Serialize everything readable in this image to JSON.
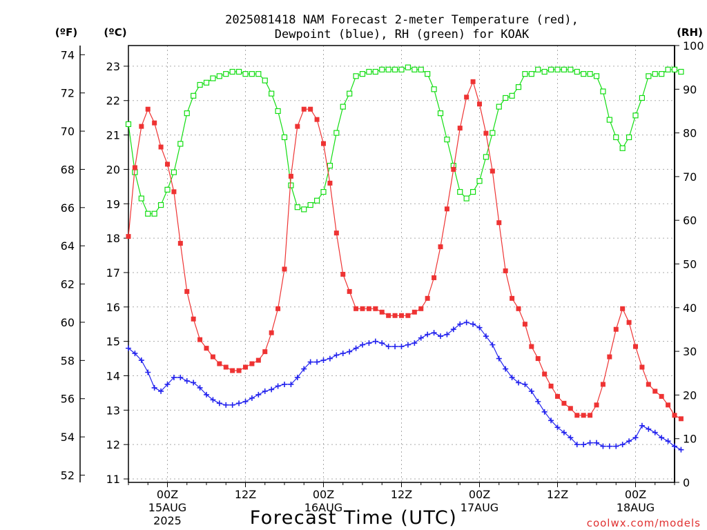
{
  "chart_data": {
    "type": "line",
    "title_line1": "2025081418 NAM Forecast 2-meter Temperature (red),",
    "title_line2": "Dewpoint (blue), RH (green) for KOAK",
    "xlabel": "Forecast Time (UTC)",
    "unit_left_f": "(ºF)",
    "unit_left_c": "(ºC)",
    "unit_right": "(RH)",
    "credit": "coolwx.com/models",
    "colors": {
      "temperature": "#ee3333",
      "dewpoint": "#2222ee",
      "rh": "#11dd11",
      "grid": "#aaaaaa"
    },
    "x_ticks": [
      {
        "hour": 6,
        "label": "00Z",
        "date": "15AUG",
        "year": "2025"
      },
      {
        "hour": 18,
        "label": "12Z",
        "date": "",
        "year": ""
      },
      {
        "hour": 30,
        "label": "00Z",
        "date": "16AUG",
        "year": ""
      },
      {
        "hour": 42,
        "label": "12Z",
        "date": "",
        "year": ""
      },
      {
        "hour": 54,
        "label": "00Z",
        "date": "17AUG",
        "year": ""
      },
      {
        "hour": 66,
        "label": "12Z",
        "date": "",
        "year": ""
      },
      {
        "hour": 78,
        "label": "00Z",
        "date": "18AUG",
        "year": ""
      }
    ],
    "x_range_hours": [
      0,
      84
    ],
    "temp_c_range": [
      10.9,
      23.6
    ],
    "temp_c_ticks": [
      11,
      12,
      13,
      14,
      15,
      16,
      17,
      18,
      19,
      20,
      21,
      22,
      23
    ],
    "temp_f_ticks": [
      52,
      54,
      56,
      58,
      60,
      62,
      64,
      66,
      68,
      70,
      72,
      74
    ],
    "rh_range": [
      0,
      100
    ],
    "rh_ticks": [
      0,
      10,
      20,
      30,
      40,
      50,
      60,
      70,
      80,
      90,
      100
    ],
    "temperature_c": [
      18.05,
      20.05,
      21.25,
      21.75,
      21.35,
      20.65,
      20.15,
      19.35,
      17.85,
      16.45,
      15.65,
      15.05,
      14.8,
      14.55,
      14.35,
      14.25,
      14.15,
      14.15,
      14.25,
      14.35,
      14.45,
      14.7,
      15.25,
      15.95,
      17.1,
      19.8,
      21.25,
      21.75,
      21.75,
      21.45,
      20.75,
      19.6,
      18.15,
      16.95,
      16.45,
      15.95,
      15.95,
      15.95,
      15.95,
      15.85,
      15.75,
      15.75,
      15.75,
      15.75,
      15.85,
      15.95,
      16.25,
      16.85,
      17.75,
      18.85,
      20.0,
      21.2,
      22.1,
      22.55,
      21.9,
      21.05,
      19.95,
      18.45,
      17.05,
      16.25,
      15.95,
      15.5,
      14.85,
      14.5,
      14.05,
      13.7,
      13.4,
      13.2,
      13.05,
      12.85,
      12.85,
      12.85,
      13.15,
      13.75,
      14.55,
      15.35,
      15.95,
      15.55,
      14.85,
      14.25,
      13.75,
      13.55,
      13.4,
      13.15,
      12.85,
      12.75
    ],
    "dewpoint_c": [
      14.8,
      14.65,
      14.45,
      14.1,
      13.65,
      13.55,
      13.75,
      13.95,
      13.95,
      13.85,
      13.8,
      13.65,
      13.45,
      13.3,
      13.2,
      13.15,
      13.15,
      13.2,
      13.25,
      13.35,
      13.45,
      13.55,
      13.6,
      13.7,
      13.75,
      13.75,
      13.95,
      14.2,
      14.4,
      14.4,
      14.45,
      14.5,
      14.6,
      14.65,
      14.7,
      14.8,
      14.9,
      14.95,
      15.0,
      14.95,
      14.85,
      14.85,
      14.85,
      14.9,
      14.95,
      15.1,
      15.2,
      15.25,
      15.15,
      15.2,
      15.35,
      15.5,
      15.55,
      15.5,
      15.4,
      15.15,
      14.9,
      14.5,
      14.2,
      13.95,
      13.8,
      13.75,
      13.55,
      13.25,
      12.95,
      12.7,
      12.5,
      12.35,
      12.2,
      12.0,
      12.0,
      12.05,
      12.05,
      11.95,
      11.95,
      11.95,
      12.0,
      12.1,
      12.2,
      12.55,
      12.45,
      12.35,
      12.2,
      12.1,
      11.95,
      11.85
    ],
    "rh_percent": [
      82.0,
      71.0,
      65.0,
      61.5,
      61.5,
      63.5,
      67.0,
      71.0,
      77.5,
      84.5,
      88.5,
      91.0,
      91.5,
      92.5,
      93.0,
      93.5,
      94.0,
      94.0,
      93.5,
      93.5,
      93.5,
      92.0,
      89.0,
      85.0,
      79.0,
      68.0,
      63.0,
      62.5,
      63.5,
      64.5,
      66.5,
      72.5,
      80.0,
      86.0,
      89.0,
      93.0,
      93.5,
      94.0,
      94.0,
      94.5,
      94.5,
      94.5,
      94.5,
      95.0,
      94.5,
      94.5,
      93.5,
      90.0,
      84.5,
      78.5,
      72.5,
      66.5,
      65.0,
      66.5,
      69.0,
      74.5,
      80.0,
      86.0,
      88.0,
      88.5,
      90.5,
      93.5,
      93.5,
      94.5,
      94.0,
      94.5,
      94.5,
      94.5,
      94.5,
      94.0,
      93.5,
      93.5,
      93.0,
      89.5,
      83.0,
      79.0,
      76.5,
      79.0,
      84.0,
      88.0,
      93.0,
      93.5,
      93.5,
      94.5,
      94.5,
      94.0
    ]
  }
}
